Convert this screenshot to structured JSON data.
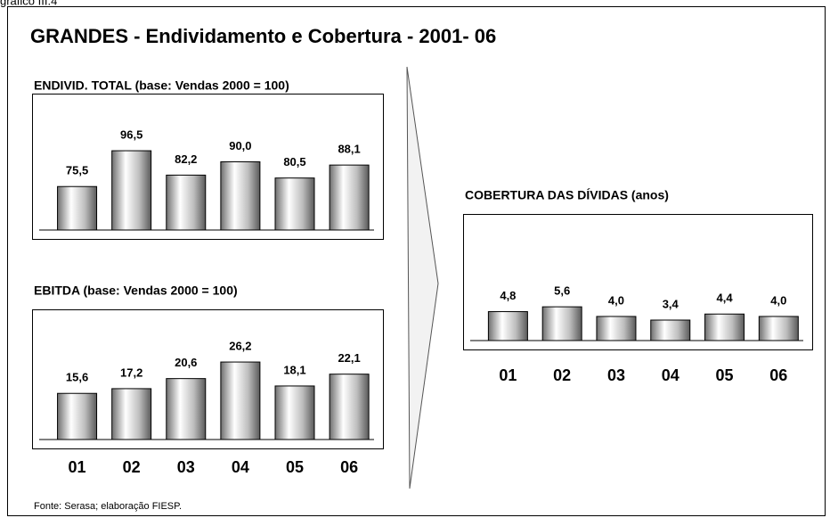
{
  "header": "gráfico III.4",
  "title": "GRANDES - Endividamento e Cobertura - 2001- 06",
  "source": "Fonte: Serasa; elaboração FIESP.",
  "chart_data": [
    {
      "type": "bar",
      "title": "ENDIVID. TOTAL (base: Vendas 2000 = 100)",
      "categories": [
        null,
        null,
        null,
        null,
        null,
        null
      ],
      "values": [
        75.5,
        96.5,
        82.2,
        90.0,
        80.5,
        88.1
      ],
      "value_labels": [
        "75,5",
        "96,5",
        "82,2",
        "90,0",
        "80,5",
        "88,1"
      ],
      "ylim": [
        50,
        130
      ]
    },
    {
      "type": "bar",
      "title": "EBITDA (base: Vendas 2000 = 100)",
      "categories": [
        "01",
        "02",
        "03",
        "04",
        "05",
        "06"
      ],
      "values": [
        15.6,
        17.2,
        20.6,
        26.2,
        18.1,
        22.1
      ],
      "value_labels": [
        "15,6",
        "17,2",
        "20,6",
        "26,2",
        "18,1",
        "22,1"
      ],
      "ylim": [
        0,
        44
      ]
    },
    {
      "type": "bar",
      "title": "COBERTURA DAS DÍVIDAS (anos)",
      "categories": [
        "01",
        "02",
        "03",
        "04",
        "05",
        "06"
      ],
      "values": [
        4.8,
        5.6,
        4.0,
        3.4,
        4.4,
        4.0
      ],
      "value_labels": [
        "4,8",
        "5,6",
        "4,0",
        "3,4",
        "4,4",
        "4,0"
      ],
      "ylim": [
        0,
        21
      ]
    }
  ]
}
